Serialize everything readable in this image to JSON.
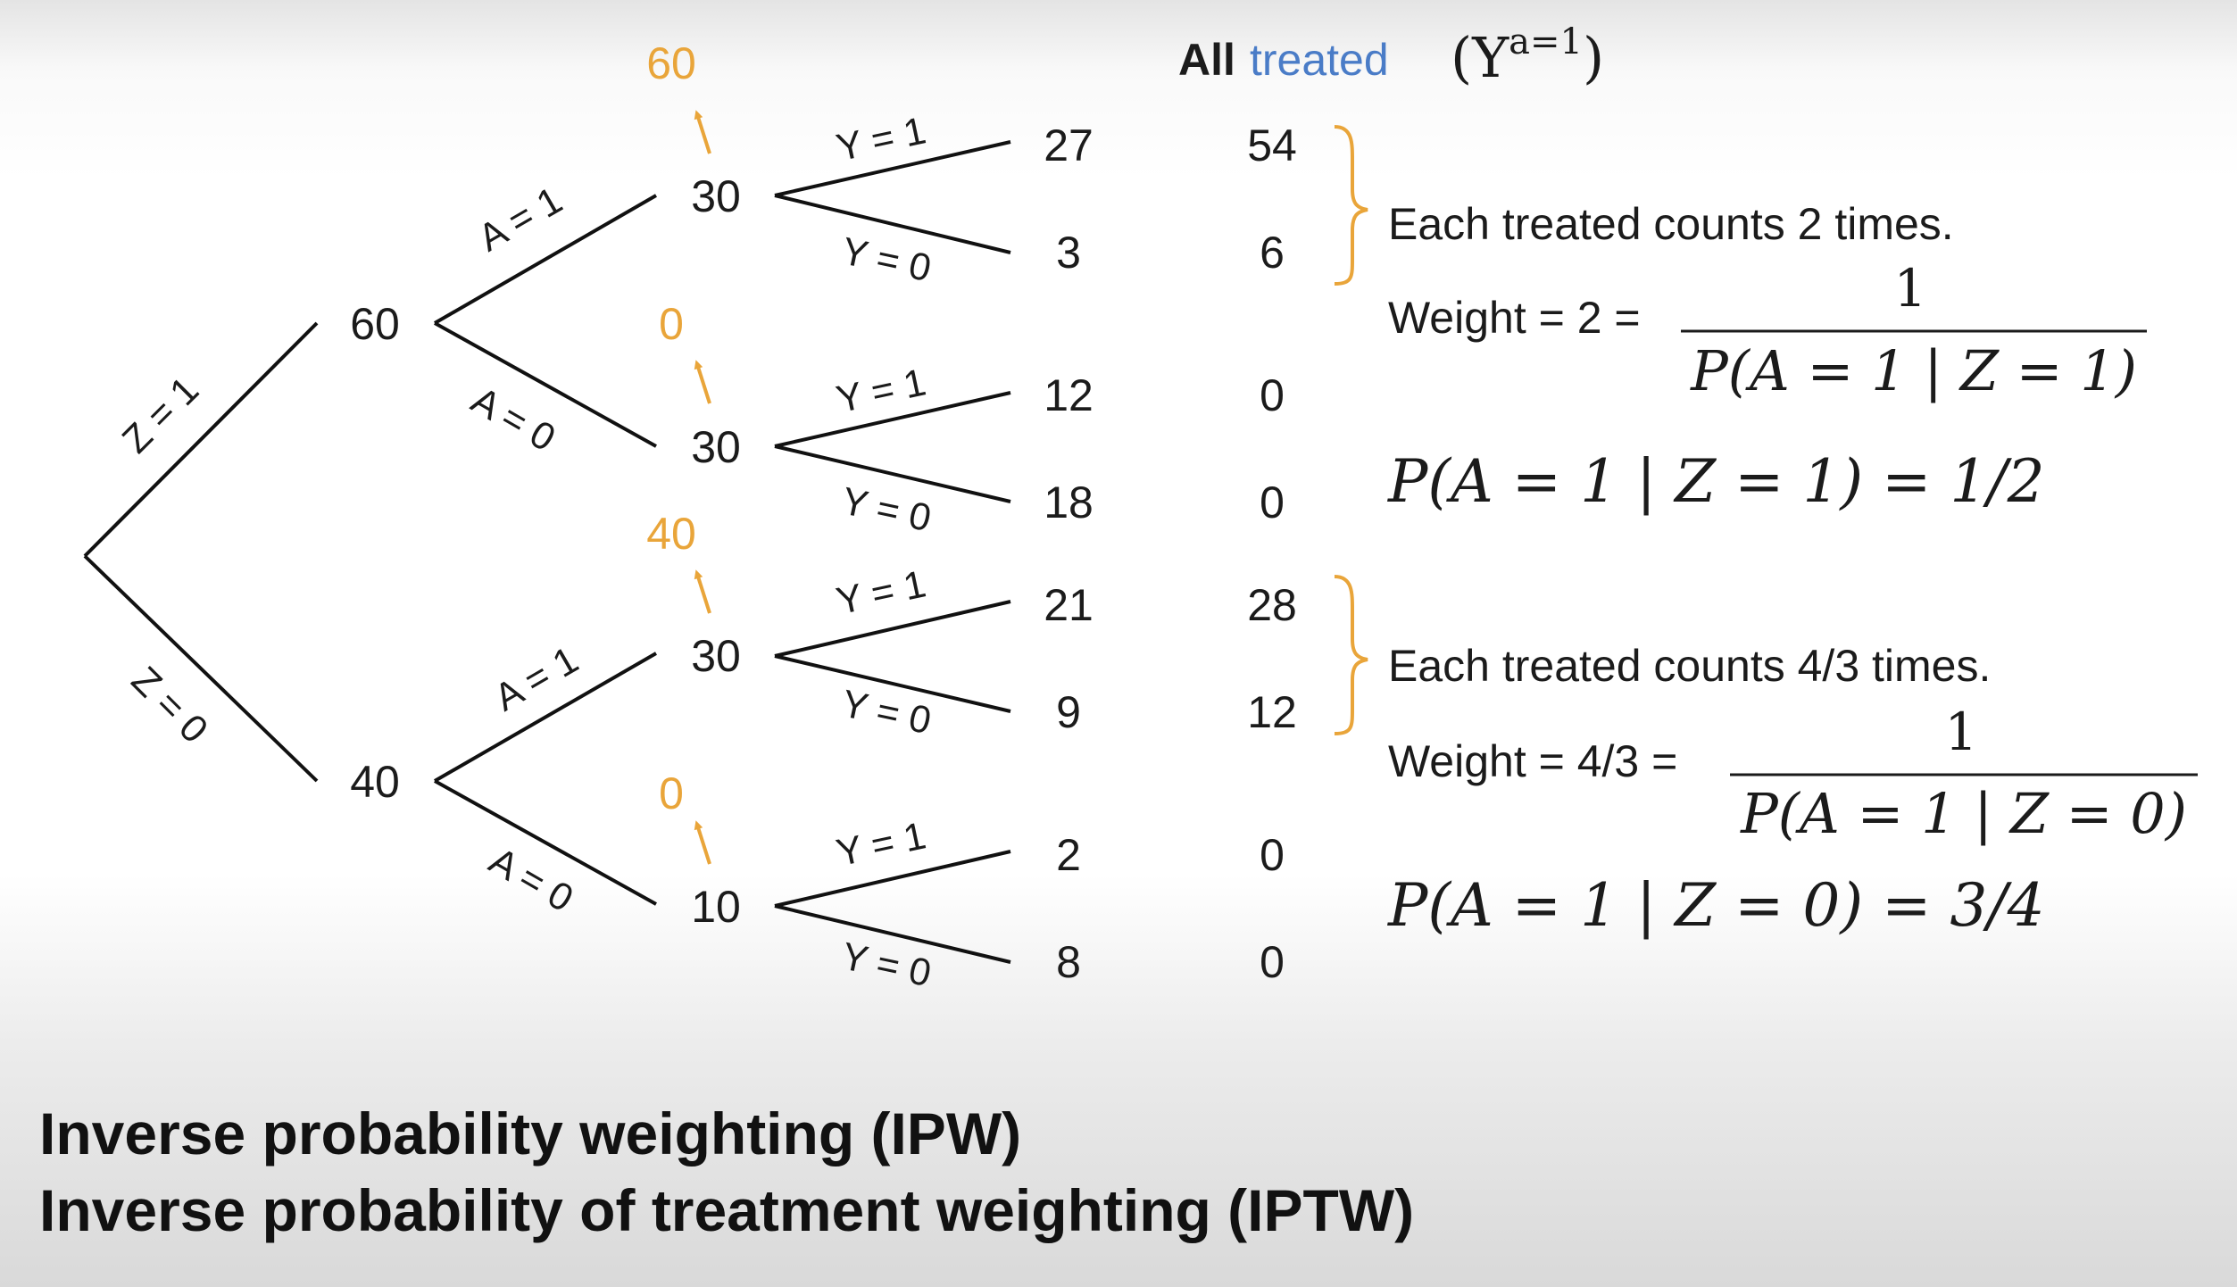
{
  "header": {
    "all_word": "All",
    "treated_word": "treated",
    "potential_outcome": "(Y",
    "potential_outcome_sup": "a=1",
    "potential_outcome_close": ")",
    "treated_color": "#4a7cc7"
  },
  "tree": {
    "root_edges": {
      "z1": "Z = 1",
      "z0": "Z = 0"
    },
    "z_nodes": {
      "z1": "60",
      "z0": "40"
    },
    "a_edges": {
      "a1": "A = 1",
      "a0": "A = 0"
    },
    "y_edges": {
      "y1": "Y = 1",
      "y0": "Y = 0"
    },
    "a_nodes": [
      "30",
      "30",
      "30",
      "10"
    ],
    "orange_values": [
      "60",
      "0",
      "40",
      "0"
    ],
    "leaves": [
      "27",
      "3",
      "12",
      "18",
      "21",
      "9",
      "2",
      "8"
    ],
    "weighted_leaves": [
      "54",
      "6",
      "0",
      "0",
      "28",
      "12",
      "0",
      "0"
    ],
    "orange_color": "#e9a53a"
  },
  "annotations": {
    "z1": {
      "counts": "Each treated counts 2 times.",
      "weight_label": "Weight = 2 =",
      "numerator": "1",
      "denominator": "P(A = 1 | Z = 1)",
      "probability": "P(A = 1 | Z = 1) = 1/2"
    },
    "z0": {
      "counts": "Each treated counts 4/3 times.",
      "weight_label": "Weight = 4/3 =",
      "numerator": "1",
      "denominator": "P(A = 1 | Z = 0)",
      "probability": "P(A = 1 | Z = 0) = 3/4"
    }
  },
  "titles": {
    "line1": "Inverse probability weighting (IPW)",
    "line2": "Inverse probability of treatment weighting (IPTW)"
  }
}
